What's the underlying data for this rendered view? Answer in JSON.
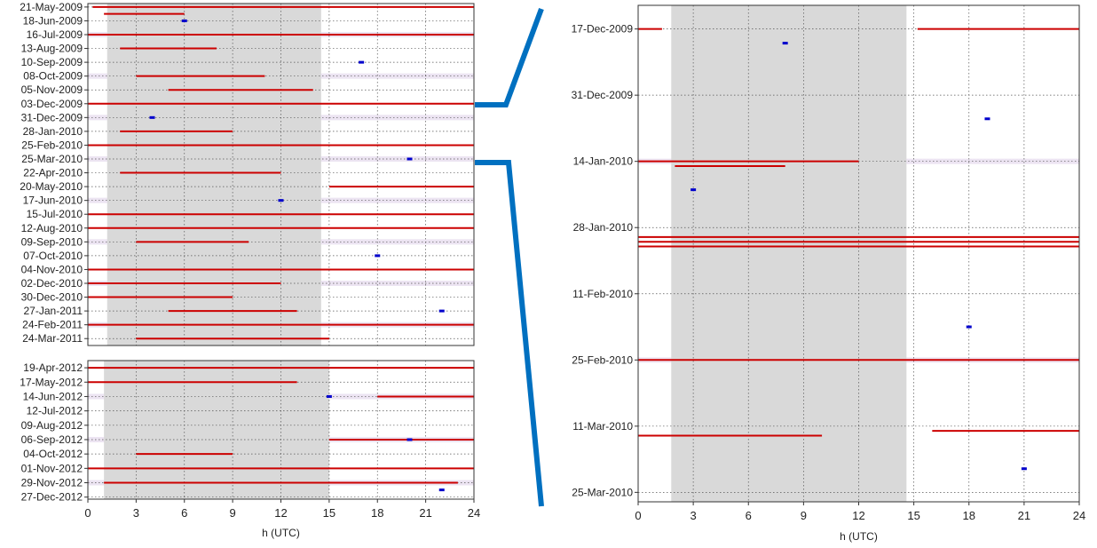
{
  "chart_data": [
    {
      "type": "scatter",
      "panel": "left-top",
      "xlabel": "",
      "xlim": [
        0,
        24
      ],
      "xticks": [
        0,
        3,
        6,
        9,
        12,
        15,
        18,
        21,
        24
      ],
      "ytick_labels": [
        "21-May-2009",
        "18-Jun-2009",
        "16-Jul-2009",
        "13-Aug-2009",
        "10-Sep-2009",
        "08-Oct-2009",
        "05-Nov-2009",
        "03-Dec-2009",
        "31-Dec-2009",
        "28-Jan-2010",
        "25-Feb-2010",
        "25-Mar-2010",
        "22-Apr-2010",
        "20-May-2010",
        "17-Jun-2010",
        "15-Jul-2010",
        "12-Aug-2010",
        "09-Sep-2010",
        "07-Oct-2010",
        "04-Nov-2010",
        "02-Dec-2010",
        "30-Dec-2010",
        "27-Jan-2011",
        "24-Feb-2011",
        "24-Mar-2011"
      ],
      "ylim": [
        "2009-05-14",
        "2011-04-07"
      ],
      "grid": true,
      "shaded_band_h_utc": [
        [
          1.2,
          14.5
        ]
      ],
      "series": [
        {
          "color": "#cc0000",
          "values": [
            [
              "2009-05-21",
              0.3,
              24
            ],
            [
              "2009-06-04",
              1,
              6
            ],
            [
              "2009-07-16",
              0,
              24
            ],
            [
              "2009-08-13",
              2,
              8
            ],
            [
              "2009-10-08",
              3,
              11
            ],
            [
              "2009-11-05",
              5,
              14
            ],
            [
              "2009-12-03",
              0,
              24
            ],
            [
              "2010-01-28",
              2,
              9
            ],
            [
              "2010-02-25",
              0,
              24
            ],
            [
              "2010-04-22",
              2,
              12
            ],
            [
              "2010-05-20",
              15,
              24
            ],
            [
              "2010-07-15",
              0,
              24
            ],
            [
              "2010-08-12",
              0,
              24
            ],
            [
              "2010-09-09",
              3,
              10
            ],
            [
              "2010-11-04",
              0,
              24
            ],
            [
              "2010-12-02",
              0,
              12
            ],
            [
              "2010-12-30",
              0,
              9
            ],
            [
              "2011-01-27",
              5,
              13
            ],
            [
              "2011-02-24",
              0,
              24
            ],
            [
              "2011-03-24",
              3,
              15
            ]
          ]
        },
        {
          "color": "#0000cc",
          "values": [
            [
              "2009-06-18",
              6
            ],
            [
              "2009-09-10",
              17
            ],
            [
              "2009-12-31",
              4
            ],
            [
              "2010-03-25",
              20
            ],
            [
              "2010-06-17",
              12
            ],
            [
              "2010-10-07",
              18
            ],
            [
              "2011-01-27",
              22
            ]
          ]
        }
      ]
    },
    {
      "type": "scatter",
      "panel": "left-bottom",
      "xlabel": "h (UTC)",
      "xlim": [
        0,
        24
      ],
      "xticks": [
        0,
        3,
        6,
        9,
        12,
        15,
        18,
        21,
        24
      ],
      "ytick_labels": [
        "19-Apr-2012",
        "17-May-2012",
        "14-Jun-2012",
        "12-Jul-2012",
        "09-Aug-2012",
        "06-Sep-2012",
        "04-Oct-2012",
        "01-Nov-2012",
        "29-Nov-2012",
        "27-Dec-2012"
      ],
      "ylim": [
        "2012-04-05",
        "2012-12-31"
      ],
      "grid": true,
      "shaded_band_h_utc": [
        [
          1.0,
          15.0
        ]
      ],
      "series": [
        {
          "color": "#cc0000",
          "values": [
            [
              "2012-04-19",
              0,
              24
            ],
            [
              "2012-05-17",
              0,
              13
            ],
            [
              "2012-06-14",
              18,
              24
            ],
            [
              "2012-09-06",
              15,
              24
            ],
            [
              "2012-10-04",
              3,
              9
            ],
            [
              "2012-11-01",
              0,
              24
            ],
            [
              "2012-11-29",
              1,
              23
            ]
          ]
        },
        {
          "color": "#0000cc",
          "values": [
            [
              "2012-06-14",
              15
            ],
            [
              "2012-09-06",
              20
            ],
            [
              "2012-12-13",
              22
            ]
          ]
        }
      ]
    },
    {
      "type": "scatter",
      "panel": "right-zoom",
      "xlabel": "h (UTC)",
      "xlim": [
        0,
        24
      ],
      "xticks": [
        0,
        3,
        6,
        9,
        12,
        15,
        18,
        21,
        24
      ],
      "ytick_labels": [
        "17-Dec-2009",
        "31-Dec-2009",
        "14-Jan-2010",
        "28-Jan-2010",
        "11-Feb-2010",
        "25-Feb-2010",
        "11-Mar-2010",
        "25-Mar-2010"
      ],
      "ylim": [
        "2009-12-12",
        "2010-03-27"
      ],
      "grid": true,
      "shaded_band_h_utc": [
        [
          1.8,
          14.6
        ]
      ],
      "series": [
        {
          "color": "#cc0000",
          "values": [
            [
              "2009-12-17",
              0,
              1.3
            ],
            [
              "2009-12-17",
              15.2,
              24
            ],
            [
              "2010-01-14",
              0,
              12
            ],
            [
              "2010-01-15",
              2,
              8
            ],
            [
              "2010-01-30",
              0,
              24
            ],
            [
              "2010-01-31",
              0,
              24
            ],
            [
              "2010-02-01",
              0,
              24
            ],
            [
              "2010-02-25",
              0,
              24
            ],
            [
              "2010-03-12",
              16,
              24
            ],
            [
              "2010-03-13",
              0,
              10
            ]
          ]
        },
        {
          "color": "#0000cc",
          "values": [
            [
              "2009-12-20",
              8
            ],
            [
              "2010-01-05",
              19
            ],
            [
              "2010-01-20",
              3
            ],
            [
              "2010-02-18",
              18
            ],
            [
              "2010-03-20",
              21
            ]
          ]
        }
      ]
    }
  ]
}
